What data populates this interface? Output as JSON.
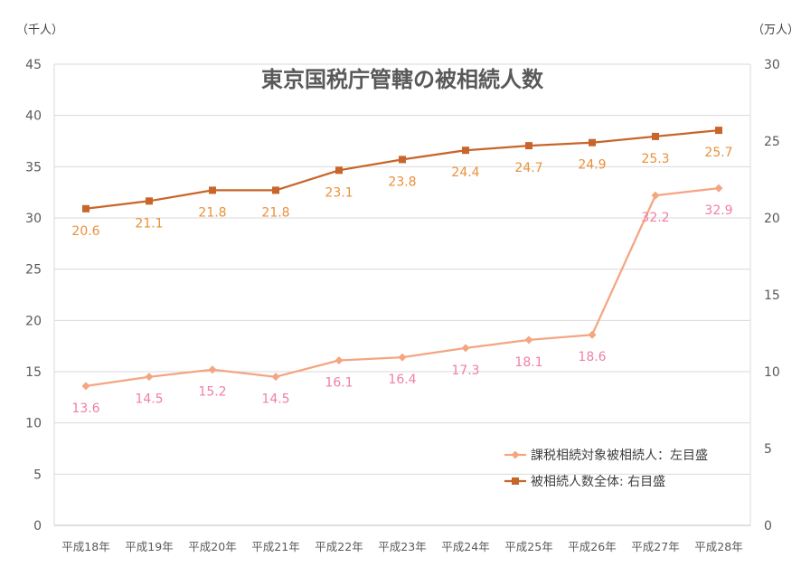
{
  "chart_data": {
    "type": "line",
    "title": "東京国税庁管轄の被相続人数",
    "left_unit": "（千人）",
    "right_unit": "（万人）",
    "categories": [
      "平成18年",
      "平成19年",
      "平成20年",
      "平成21年",
      "平成22年",
      "平成23年",
      "平成24年",
      "平成25年",
      "平成26年",
      "平成27年",
      "平成28年"
    ],
    "ylim_left": [
      0,
      45
    ],
    "ylim_right": [
      0,
      30
    ],
    "left_ticks": [
      "0",
      "5",
      "10",
      "15",
      "20",
      "25",
      "30",
      "35",
      "40",
      "45"
    ],
    "right_ticks": [
      "0",
      "5",
      "10",
      "15",
      "20",
      "25",
      "30"
    ],
    "grid": true,
    "legend_position": "bottom-right",
    "series": [
      {
        "name": "課税相続対象被相続人：左目盛",
        "axis": "left",
        "marker": "diamond",
        "color": "#F4A582",
        "label_color": "#F07FA6",
        "values": [
          13.6,
          14.5,
          15.2,
          14.5,
          16.1,
          16.4,
          17.3,
          18.1,
          18.6,
          32.2,
          32.9
        ],
        "labels": [
          "13.6",
          "14.5",
          "15.2",
          "14.5",
          "16.1",
          "16.4",
          "17.3",
          "18.1",
          "18.6",
          "32.2",
          "32.9"
        ]
      },
      {
        "name": "被相続人数全体:  右目盛",
        "axis": "right",
        "marker": "square",
        "color": "#C8652A",
        "label_color": "#E9913B",
        "values": [
          20.6,
          21.1,
          21.8,
          21.8,
          23.1,
          23.8,
          24.4,
          24.7,
          24.9,
          25.3,
          25.7
        ],
        "labels": [
          "20.6",
          "21.1",
          "21.8",
          "21.8",
          "23.1",
          "23.8",
          "24.4",
          "24.7",
          "24.9",
          "25.3",
          "25.7"
        ]
      }
    ]
  }
}
